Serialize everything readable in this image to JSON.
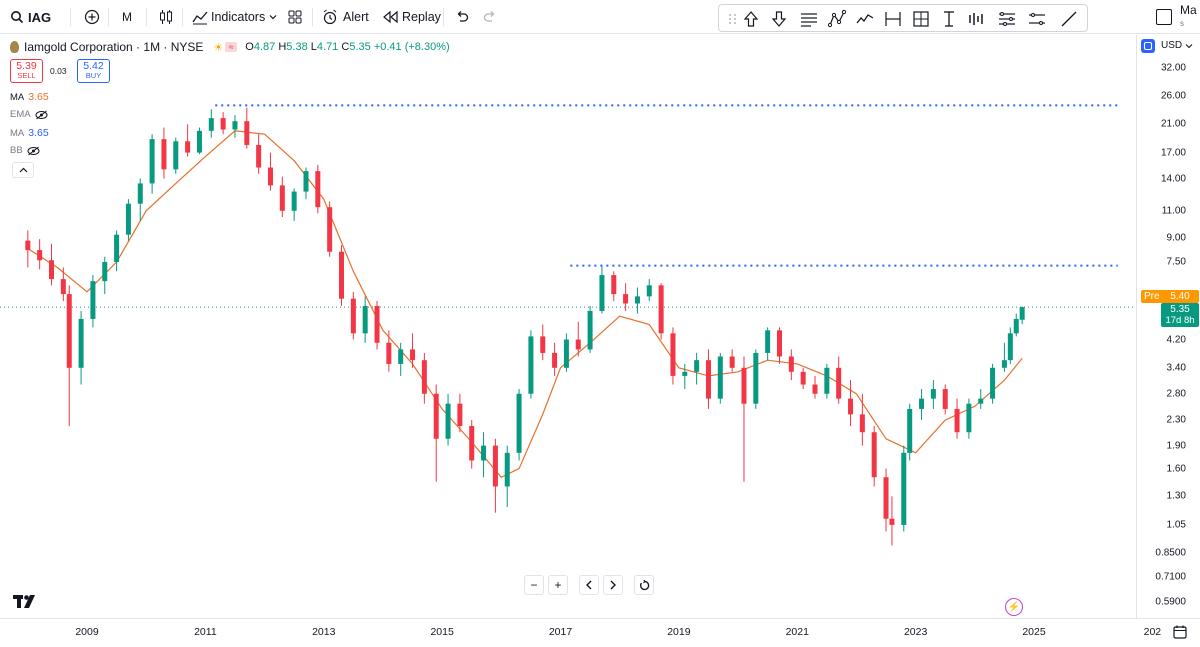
{
  "symbol": "IAG",
  "interval": "M",
  "toolbar": {
    "indicators_label": "Indicators",
    "alert_label": "Alert",
    "replay_label": "Replay"
  },
  "legend": {
    "name": "Iamgold Corporation · 1M · NYSE",
    "open_label": "O",
    "open": "4.87",
    "high_label": "H",
    "high": "5.38",
    "low_label": "L",
    "low": "4.71",
    "close_label": "C",
    "close": "5.35",
    "change": "+0.41 (+8.30%)",
    "sell_price": "5.39",
    "sell_label": "SELL",
    "spread": "0.03",
    "buy_price": "5.42",
    "buy_label": "BUY",
    "ma1_label": "MA",
    "ma1_value": "3.65",
    "ema_label": "EMA",
    "ma2_label": "MA",
    "ma2_value": "3.65",
    "bb_label": "BB"
  },
  "currency": "USD",
  "top_right_cut": "Ma",
  "top_right_cut_sub": "s",
  "price_axis": [
    "32.00",
    "26.00",
    "21.00",
    "17.00",
    "14.00",
    "11.00",
    "9.00",
    "7.50",
    "5.35",
    "4.20",
    "3.40",
    "2.80",
    "2.30",
    "1.90",
    "1.60",
    "1.30",
    "1.05",
    "0.8500",
    "0.7100",
    "0.5900"
  ],
  "pre_label": "Pre",
  "pre_price": "5.40",
  "last_price": "5.35",
  "countdown": "17d 8h",
  "time_axis": [
    "2009",
    "2011",
    "2013",
    "2015",
    "2017",
    "2019",
    "2021",
    "2023",
    "2025",
    "202"
  ],
  "colors": {
    "up": "#089981",
    "down": "#f23645",
    "ma": "#e8702a",
    "dotted": "#2962ff",
    "accent": "#2962ff"
  },
  "chart_data": {
    "type": "candlestick",
    "scale": "log",
    "ylim": [
      0.59,
      32.0
    ],
    "x_range": [
      "2008-01",
      "2026-12"
    ],
    "horizontal_lines": [
      {
        "price": 24.2,
        "from": "2011-03",
        "to": "2026-06"
      },
      {
        "price": 7.3,
        "from": "2017-03",
        "to": "2026-06"
      }
    ],
    "ma_line": [
      [
        2008.0,
        8.3
      ],
      [
        2008.5,
        7.2
      ],
      [
        2009.0,
        6.0
      ],
      [
        2009.5,
        7.5
      ],
      [
        2010.0,
        11.0
      ],
      [
        2010.5,
        13.5
      ],
      [
        2011.0,
        16.5
      ],
      [
        2011.5,
        20.0
      ],
      [
        2012.0,
        19.5
      ],
      [
        2012.5,
        16.0
      ],
      [
        2013.0,
        12.0
      ],
      [
        2013.5,
        7.0
      ],
      [
        2014.0,
        4.5
      ],
      [
        2014.5,
        3.5
      ],
      [
        2015.0,
        2.5
      ],
      [
        2015.5,
        1.95
      ],
      [
        2016.0,
        1.5
      ],
      [
        2016.3,
        1.6
      ],
      [
        2016.7,
        2.4
      ],
      [
        2017.0,
        3.4
      ],
      [
        2017.5,
        4.1
      ],
      [
        2018.0,
        5.0
      ],
      [
        2018.5,
        4.7
      ],
      [
        2019.0,
        3.4
      ],
      [
        2019.5,
        3.2
      ],
      [
        2020.0,
        3.3
      ],
      [
        2020.5,
        3.6
      ],
      [
        2021.0,
        3.5
      ],
      [
        2021.5,
        3.2
      ],
      [
        2022.0,
        2.8
      ],
      [
        2022.5,
        2.0
      ],
      [
        2023.0,
        1.8
      ],
      [
        2023.5,
        2.3
      ],
      [
        2024.0,
        2.55
      ],
      [
        2024.5,
        3.1
      ],
      [
        2024.8,
        3.65
      ]
    ],
    "candles": [
      [
        2008.0,
        8.8,
        9.5,
        7.2,
        8.2
      ],
      [
        2008.2,
        8.2,
        8.9,
        7.1,
        7.6
      ],
      [
        2008.4,
        7.6,
        8.6,
        6.3,
        6.6
      ],
      [
        2008.6,
        6.6,
        7.2,
        5.6,
        5.9
      ],
      [
        2008.7,
        5.9,
        6.3,
        2.2,
        3.4
      ],
      [
        2008.9,
        3.4,
        5.2,
        3.0,
        4.9
      ],
      [
        2009.1,
        4.9,
        6.8,
        4.6,
        6.5
      ],
      [
        2009.3,
        6.5,
        7.8,
        5.9,
        7.5
      ],
      [
        2009.5,
        7.5,
        9.5,
        7.0,
        9.2
      ],
      [
        2009.7,
        9.2,
        12.0,
        8.8,
        11.6
      ],
      [
        2009.9,
        11.6,
        14.0,
        10.2,
        13.5
      ],
      [
        2010.1,
        13.5,
        19.5,
        12.5,
        18.8
      ],
      [
        2010.3,
        18.8,
        20.5,
        14.0,
        15.0
      ],
      [
        2010.5,
        15.0,
        19.0,
        14.5,
        18.5
      ],
      [
        2010.7,
        18.5,
        21.0,
        16.5,
        17.0
      ],
      [
        2010.9,
        17.0,
        20.5,
        16.8,
        20.0
      ],
      [
        2011.1,
        20.0,
        23.5,
        19.0,
        22.0
      ],
      [
        2011.3,
        22.0,
        23.0,
        19.5,
        20.2
      ],
      [
        2011.5,
        20.2,
        22.5,
        19.0,
        21.5
      ],
      [
        2011.7,
        21.5,
        23.8,
        17.5,
        18.0
      ],
      [
        2011.9,
        18.0,
        19.5,
        14.5,
        15.2
      ],
      [
        2012.1,
        15.2,
        17.0,
        12.8,
        13.3
      ],
      [
        2012.3,
        13.3,
        14.2,
        10.5,
        11.0
      ],
      [
        2012.5,
        11.0,
        13.0,
        10.2,
        12.7
      ],
      [
        2012.7,
        12.7,
        15.2,
        12.0,
        14.8
      ],
      [
        2012.9,
        14.8,
        15.5,
        10.8,
        11.3
      ],
      [
        2013.1,
        11.3,
        11.8,
        7.8,
        8.1
      ],
      [
        2013.3,
        8.1,
        8.5,
        5.4,
        5.7
      ],
      [
        2013.5,
        5.7,
        6.0,
        4.2,
        4.4
      ],
      [
        2013.7,
        4.4,
        5.8,
        4.1,
        5.4
      ],
      [
        2013.9,
        5.4,
        5.6,
        3.9,
        4.1
      ],
      [
        2014.1,
        4.1,
        4.5,
        3.3,
        3.5
      ],
      [
        2014.3,
        3.5,
        4.1,
        3.2,
        3.9
      ],
      [
        2014.5,
        3.9,
        4.4,
        3.4,
        3.6
      ],
      [
        2014.7,
        3.6,
        3.8,
        2.6,
        2.8
      ],
      [
        2014.9,
        2.8,
        3.0,
        1.45,
        2.0
      ],
      [
        2015.1,
        2.0,
        2.8,
        1.9,
        2.6
      ],
      [
        2015.3,
        2.6,
        2.8,
        2.1,
        2.2
      ],
      [
        2015.5,
        2.2,
        2.3,
        1.6,
        1.7
      ],
      [
        2015.7,
        1.7,
        2.1,
        1.5,
        1.9
      ],
      [
        2015.9,
        1.9,
        2.0,
        1.15,
        1.4
      ],
      [
        2016.1,
        1.4,
        1.9,
        1.2,
        1.8
      ],
      [
        2016.3,
        1.8,
        2.9,
        1.7,
        2.8
      ],
      [
        2016.5,
        2.8,
        4.5,
        2.7,
        4.3
      ],
      [
        2016.7,
        4.3,
        4.7,
        3.6,
        3.8
      ],
      [
        2016.9,
        3.8,
        4.1,
        3.2,
        3.4
      ],
      [
        2017.1,
        3.4,
        4.4,
        3.3,
        4.2
      ],
      [
        2017.3,
        4.2,
        4.8,
        3.7,
        3.9
      ],
      [
        2017.5,
        3.9,
        5.4,
        3.8,
        5.2
      ],
      [
        2017.7,
        5.2,
        7.3,
        5.1,
        6.8
      ],
      [
        2017.9,
        6.8,
        7.0,
        5.6,
        5.9
      ],
      [
        2018.1,
        5.9,
        6.4,
        5.2,
        5.5
      ],
      [
        2018.3,
        5.5,
        6.2,
        5.1,
        5.8
      ],
      [
        2018.5,
        5.8,
        6.6,
        5.6,
        6.3
      ],
      [
        2018.7,
        6.3,
        6.4,
        4.2,
        4.4
      ],
      [
        2018.9,
        4.4,
        4.6,
        3.0,
        3.2
      ],
      [
        2019.1,
        3.2,
        3.5,
        2.9,
        3.3
      ],
      [
        2019.3,
        3.3,
        3.8,
        3.0,
        3.6
      ],
      [
        2019.5,
        3.6,
        3.9,
        2.5,
        2.7
      ],
      [
        2019.7,
        2.7,
        3.8,
        2.6,
        3.7
      ],
      [
        2019.9,
        3.7,
        3.9,
        3.3,
        3.4
      ],
      [
        2020.1,
        3.4,
        3.7,
        1.45,
        2.6
      ],
      [
        2020.3,
        2.6,
        3.9,
        2.5,
        3.8
      ],
      [
        2020.5,
        3.8,
        4.6,
        3.6,
        4.5
      ],
      [
        2020.7,
        4.5,
        4.6,
        3.5,
        3.7
      ],
      [
        2020.9,
        3.7,
        3.9,
        3.1,
        3.3
      ],
      [
        2021.1,
        3.3,
        3.4,
        2.9,
        3.0
      ],
      [
        2021.3,
        3.0,
        3.2,
        2.7,
        2.8
      ],
      [
        2021.5,
        2.8,
        3.5,
        2.7,
        3.4
      ],
      [
        2021.7,
        3.4,
        3.7,
        2.6,
        2.7
      ],
      [
        2021.9,
        2.7,
        3.1,
        2.2,
        2.4
      ],
      [
        2022.1,
        2.4,
        2.8,
        1.9,
        2.1
      ],
      [
        2022.3,
        2.1,
        2.2,
        1.4,
        1.5
      ],
      [
        2022.5,
        1.5,
        1.6,
        1.0,
        1.1
      ],
      [
        2022.6,
        1.1,
        1.3,
        0.9,
        1.05
      ],
      [
        2022.8,
        1.05,
        1.9,
        1.0,
        1.8
      ],
      [
        2022.9,
        1.8,
        2.6,
        1.7,
        2.5
      ],
      [
        2023.1,
        2.5,
        2.9,
        2.3,
        2.7
      ],
      [
        2023.3,
        2.7,
        3.1,
        2.5,
        2.9
      ],
      [
        2023.5,
        2.9,
        3.0,
        2.4,
        2.5
      ],
      [
        2023.7,
        2.5,
        2.7,
        2.0,
        2.1
      ],
      [
        2023.9,
        2.1,
        2.7,
        2.0,
        2.6
      ],
      [
        2024.1,
        2.6,
        2.9,
        2.5,
        2.7
      ],
      [
        2024.3,
        2.7,
        3.5,
        2.6,
        3.4
      ],
      [
        2024.5,
        3.4,
        4.1,
        3.3,
        3.6
      ],
      [
        2024.6,
        3.6,
        4.6,
        3.5,
        4.4
      ],
      [
        2024.7,
        4.4,
        5.1,
        4.3,
        4.9
      ],
      [
        2024.8,
        4.87,
        5.38,
        4.71,
        5.35
      ]
    ]
  }
}
